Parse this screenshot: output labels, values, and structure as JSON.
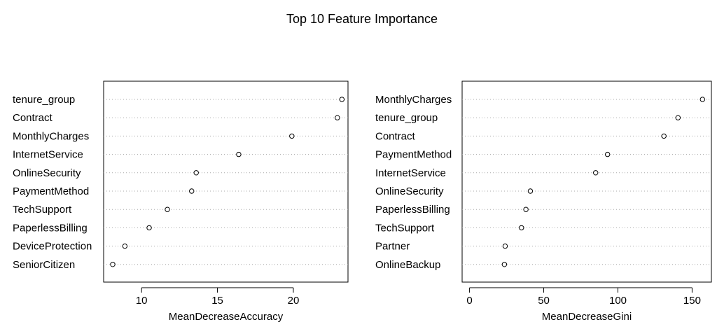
{
  "title": "Top 10 Feature Importance",
  "chart_data": [
    {
      "type": "scatter",
      "style": "dotchart",
      "xlabel": "MeanDecreaseAccuracy",
      "categories": [
        "tenure_group",
        "Contract",
        "MonthlyCharges",
        "InternetService",
        "OnlineSecurity",
        "PaymentMethod",
        "TechSupport",
        "PaperlessBilling",
        "DeviceProtection",
        "SeniorCitizen"
      ],
      "values": [
        23.2,
        22.9,
        19.9,
        16.4,
        13.6,
        13.3,
        11.7,
        10.5,
        8.9,
        8.1
      ],
      "xlim": [
        7.5,
        23.6
      ],
      "xticks": [
        10,
        15,
        20
      ],
      "grid": "dotted horizontal"
    },
    {
      "type": "scatter",
      "style": "dotchart",
      "xlabel": "MeanDecreaseGini",
      "categories": [
        "MonthlyCharges",
        "tenure_group",
        "Contract",
        "PaymentMethod",
        "InternetService",
        "OnlineSecurity",
        "PaperlessBilling",
        "TechSupport",
        "Partner",
        "OnlineBackup"
      ],
      "values": [
        157,
        140.5,
        131,
        93,
        85,
        41,
        38,
        35,
        24,
        23.5
      ],
      "xlim": [
        -5,
        163
      ],
      "xticks": [
        0,
        50,
        100,
        150
      ],
      "grid": "dotted horizontal"
    }
  ]
}
